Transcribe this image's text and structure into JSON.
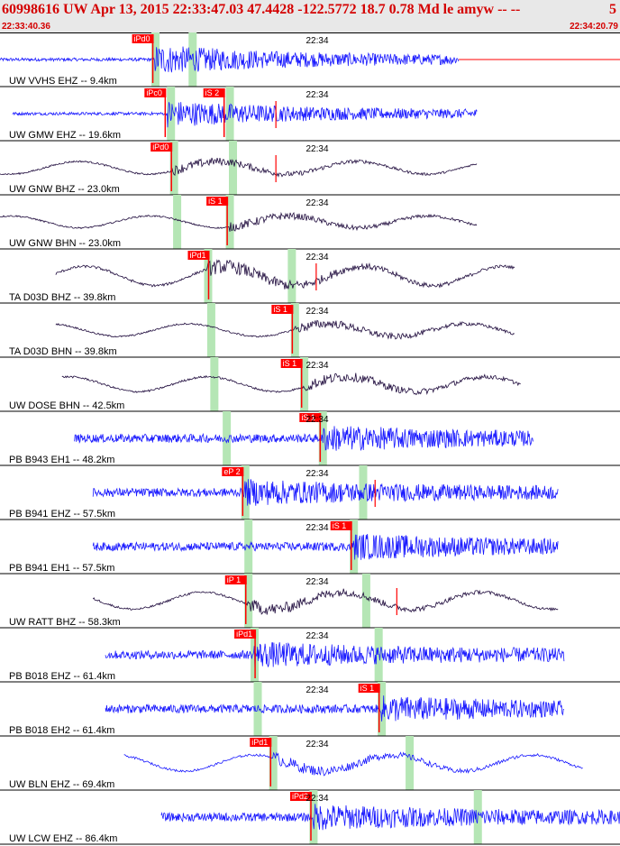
{
  "header": {
    "title": "60998616 UW Apr 13, 2015 22:33:47.03    47.4428 -122.5772 18.7 0.78 Md le amyw -- --",
    "title_tail": "5",
    "start_time": "22:33:40.36",
    "end_time": "22:34:20.79"
  },
  "minute_label": "22:34",
  "colors": {
    "vertical": "#1a1aff",
    "horizontal": "#1e0a3c",
    "pick": "#ff0000",
    "pick_window": "#b5e6b5",
    "header": "#d40000"
  },
  "traces": [
    {
      "label": "UW VVHS EHZ -- 9.4km",
      "color": "vertical",
      "start": 0.0,
      "end": 0.74,
      "amp": 0.35,
      "arrival": 0.25,
      "freq": "high",
      "picks": [
        {
          "text": "iPd0",
          "t": 0.245
        }
      ],
      "windows": [
        0.25,
        0.31
      ],
      "tail": 0.74
    },
    {
      "label": "UW GMW EHZ -- 19.6km",
      "color": "vertical",
      "start": 0.02,
      "end": 0.77,
      "amp": 0.32,
      "arrival": 0.27,
      "freq": "high",
      "picks": [
        {
          "text": "iPc0",
          "t": 0.265
        },
        {
          "text": "iS 2",
          "t": 0.36
        }
      ],
      "windows": [
        0.275,
        0.37
      ],
      "tick": 0.445
    },
    {
      "label": "UW GNW BHZ -- 23.0km",
      "color": "horizontal",
      "start": 0.0,
      "end": 0.77,
      "amp": 0.3,
      "arrival": 0.275,
      "freq": "long",
      "picks": [
        {
          "text": "iPd0",
          "t": 0.275
        }
      ],
      "windows": [
        0.28,
        0.375
      ],
      "tick": 0.445
    },
    {
      "label": "UW GNW BHN -- 23.0km",
      "color": "horizontal",
      "start": 0.0,
      "end": 0.77,
      "amp": 0.28,
      "arrival": 0.37,
      "freq": "long",
      "picks": [
        {
          "text": "iS 1",
          "t": 0.365
        }
      ],
      "windows": [
        0.285,
        0.37
      ]
    },
    {
      "label": "TA D03D BHZ -- 39.8km",
      "color": "horizontal",
      "start": 0.09,
      "end": 0.83,
      "amp": 0.45,
      "arrival": 0.335,
      "freq": "long",
      "picks": [
        {
          "text": "iPd1",
          "t": 0.335
        }
      ],
      "windows": [
        0.335,
        0.47
      ],
      "tick": 0.51
    },
    {
      "label": "TA D03D BHN -- 39.8km",
      "color": "horizontal",
      "start": 0.09,
      "end": 0.83,
      "amp": 0.3,
      "arrival": 0.475,
      "freq": "long",
      "picks": [
        {
          "text": "iS 1",
          "t": 0.47
        }
      ],
      "windows": [
        0.34,
        0.475
      ]
    },
    {
      "label": "UW DOSE BHN -- 42.5km",
      "color": "horizontal",
      "start": 0.1,
      "end": 0.84,
      "amp": 0.35,
      "arrival": 0.49,
      "freq": "long",
      "picks": [
        {
          "text": "iS 1",
          "t": 0.485
        }
      ],
      "windows": [
        0.345,
        0.49
      ]
    },
    {
      "label": "PB B943 EH1 -- 48.2km",
      "color": "vertical",
      "start": 0.12,
      "end": 0.86,
      "amp": 0.32,
      "arrival": 0.52,
      "freq": "noise",
      "picks": [
        {
          "text": "iS 1",
          "t": 0.515
        }
      ],
      "windows": [
        0.365,
        0.52
      ]
    },
    {
      "label": "PB B941 EHZ -- 57.5km",
      "color": "vertical",
      "start": 0.15,
      "end": 0.9,
      "amp": 0.32,
      "arrival": 0.395,
      "freq": "noise",
      "picks": [
        {
          "text": "eP 2",
          "t": 0.39
        }
      ],
      "windows": [
        0.395,
        0.585
      ],
      "tick": 0.605
    },
    {
      "label": "PB B941 EH1 -- 57.5km",
      "color": "vertical",
      "start": 0.15,
      "end": 0.9,
      "amp": 0.32,
      "arrival": 0.57,
      "freq": "noise",
      "picks": [
        {
          "text": "iS 1",
          "t": 0.565
        }
      ],
      "windows": [
        0.4,
        0.57
      ]
    },
    {
      "label": "UW RATT BHZ -- 58.3km",
      "color": "horizontal",
      "start": 0.15,
      "end": 0.9,
      "amp": 0.4,
      "arrival": 0.4,
      "freq": "long",
      "picks": [
        {
          "text": "iP 1",
          "t": 0.395
        }
      ],
      "windows": [
        0.4,
        0.59
      ],
      "tick": 0.64
    },
    {
      "label": "PB B018 EHZ -- 61.4km",
      "color": "vertical",
      "start": 0.17,
      "end": 0.91,
      "amp": 0.32,
      "arrival": 0.41,
      "freq": "noise",
      "picks": [
        {
          "text": "iPd1",
          "t": 0.41
        }
      ],
      "windows": [
        0.41,
        0.61
      ]
    },
    {
      "label": "PB B018 EH2 -- 61.4km",
      "color": "vertical",
      "start": 0.17,
      "end": 0.91,
      "amp": 0.32,
      "arrival": 0.615,
      "freq": "noise",
      "picks": [
        {
          "text": "iS 1",
          "t": 0.61
        }
      ],
      "windows": [
        0.415,
        0.615
      ]
    },
    {
      "label": "UW BLN EHZ -- 69.4km",
      "color": "vertical",
      "start": 0.2,
      "end": 0.94,
      "amp": 0.38,
      "arrival": 0.44,
      "freq": "long",
      "picks": [
        {
          "text": "iPd1",
          "t": 0.435
        }
      ],
      "windows": [
        0.44,
        0.66
      ]
    },
    {
      "label": "UW LCW EHZ -- 86.4km",
      "color": "vertical",
      "start": 0.26,
      "end": 1.0,
      "amp": 0.32,
      "arrival": 0.505,
      "freq": "noise",
      "picks": [
        {
          "text": "iPd2",
          "t": 0.5
        }
      ],
      "windows": [
        0.505,
        0.77
      ]
    }
  ]
}
